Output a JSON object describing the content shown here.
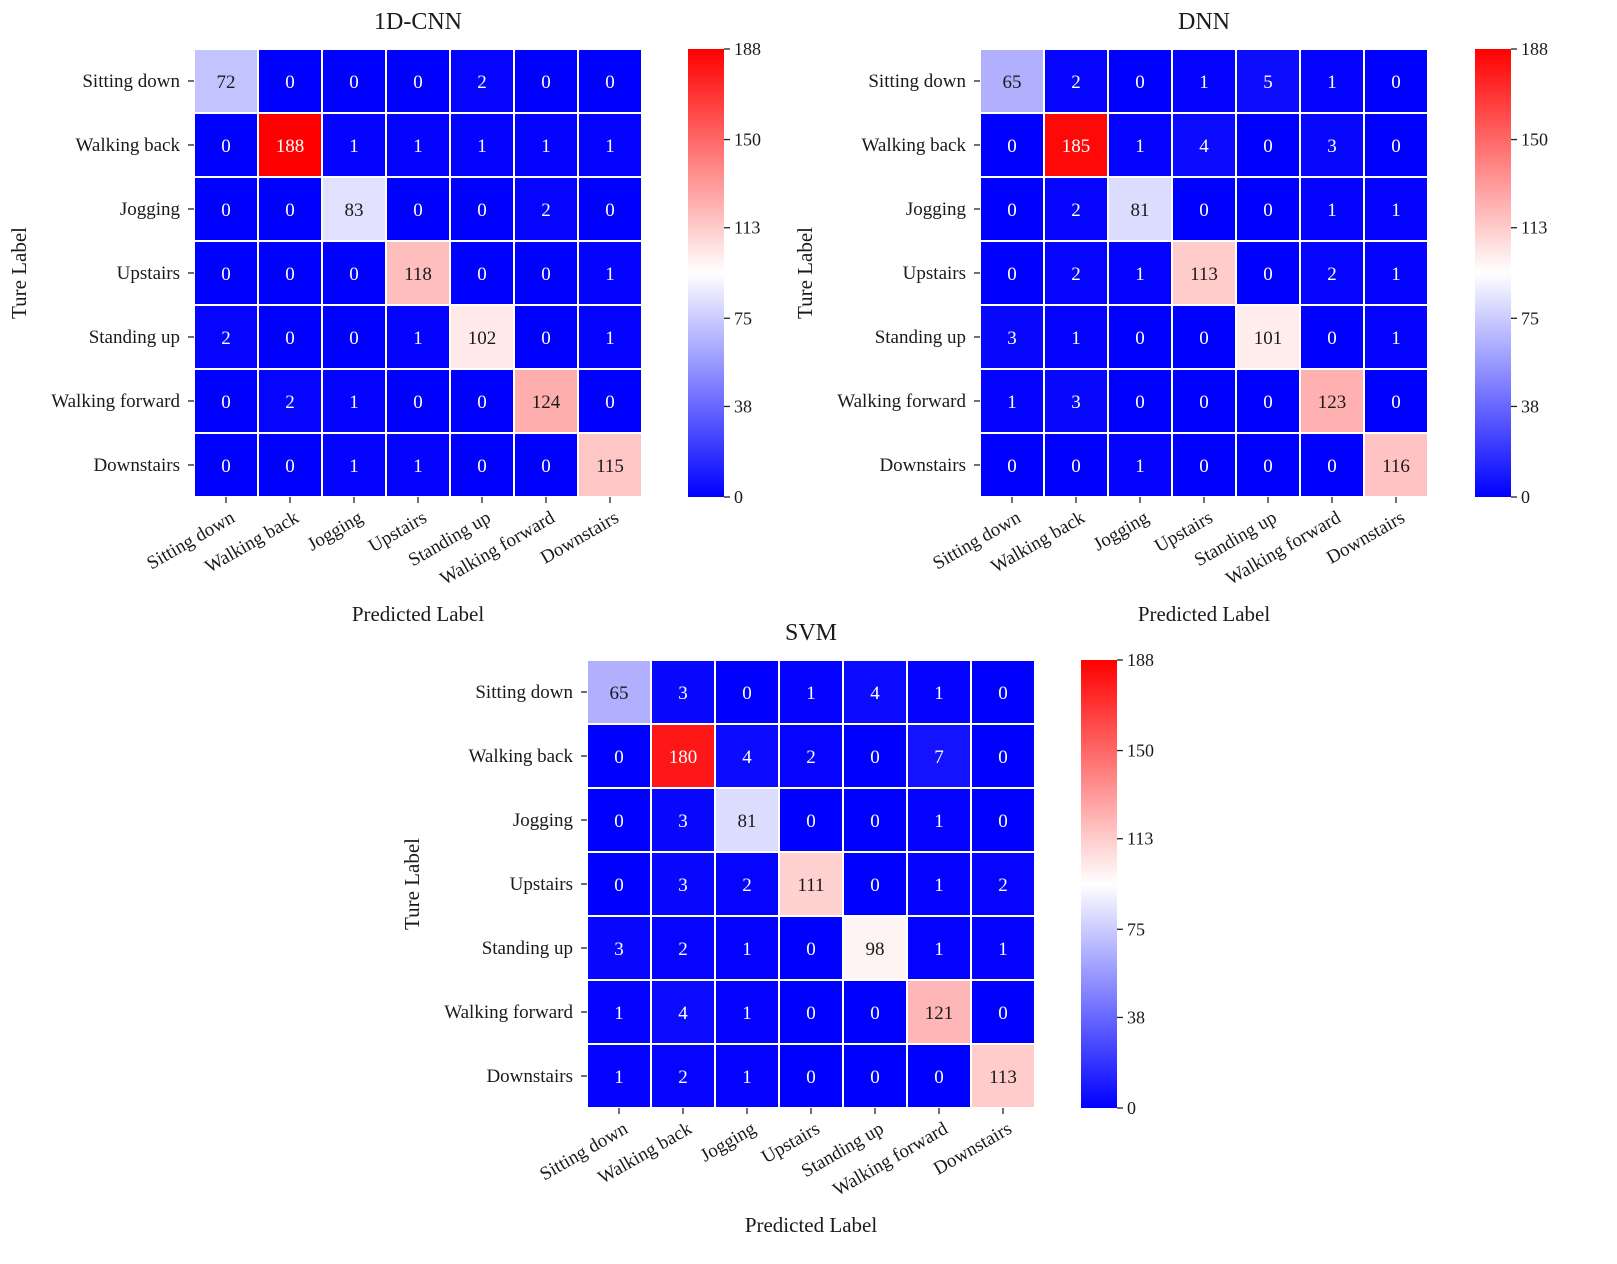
{
  "chart_data": [
    {
      "type": "heatmap",
      "title": "1D-CNN",
      "xlabel": "Predicted Label",
      "ylabel": "Ture Label",
      "categories": [
        "Sitting down",
        "Walking back",
        "Jogging",
        "Upstairs",
        "Standing up",
        "Walking forward",
        "Downstairs"
      ],
      "matrix": [
        [
          72,
          0,
          0,
          0,
          2,
          0,
          0
        ],
        [
          0,
          188,
          1,
          1,
          1,
          1,
          1
        ],
        [
          0,
          0,
          83,
          0,
          0,
          2,
          0
        ],
        [
          0,
          0,
          0,
          118,
          0,
          0,
          1
        ],
        [
          2,
          0,
          0,
          1,
          102,
          0,
          1
        ],
        [
          0,
          2,
          1,
          0,
          0,
          124,
          0
        ],
        [
          0,
          0,
          1,
          1,
          0,
          0,
          115
        ]
      ],
      "colorbar": {
        "min": 0,
        "max": 188,
        "ticks": [
          0,
          38,
          75,
          113,
          150,
          188
        ]
      }
    },
    {
      "type": "heatmap",
      "title": "DNN",
      "xlabel": "Predicted Label",
      "ylabel": "Ture Label",
      "categories": [
        "Sitting down",
        "Walking back",
        "Jogging",
        "Upstairs",
        "Standing up",
        "Walking forward",
        "Downstairs"
      ],
      "matrix": [
        [
          65,
          2,
          0,
          1,
          5,
          1,
          0
        ],
        [
          0,
          185,
          1,
          4,
          0,
          3,
          0
        ],
        [
          0,
          2,
          81,
          0,
          0,
          1,
          1
        ],
        [
          0,
          2,
          1,
          113,
          0,
          2,
          1
        ],
        [
          3,
          1,
          0,
          0,
          101,
          0,
          1
        ],
        [
          1,
          3,
          0,
          0,
          0,
          123,
          0
        ],
        [
          0,
          0,
          1,
          0,
          0,
          0,
          116
        ]
      ],
      "colorbar": {
        "min": 0,
        "max": 188,
        "ticks": [
          0,
          38,
          75,
          113,
          150,
          188
        ]
      }
    },
    {
      "type": "heatmap",
      "title": "SVM",
      "xlabel": "Predicted Label",
      "ylabel": "Ture Label",
      "categories": [
        "Sitting down",
        "Walking back",
        "Jogging",
        "Upstairs",
        "Standing up",
        "Walking forward",
        "Downstairs"
      ],
      "matrix": [
        [
          65,
          3,
          0,
          1,
          4,
          1,
          0
        ],
        [
          0,
          180,
          4,
          2,
          0,
          7,
          0
        ],
        [
          0,
          3,
          81,
          0,
          0,
          1,
          0
        ],
        [
          0,
          3,
          2,
          111,
          0,
          1,
          2
        ],
        [
          3,
          2,
          1,
          0,
          98,
          1,
          1
        ],
        [
          1,
          4,
          1,
          0,
          0,
          121,
          0
        ],
        [
          1,
          2,
          1,
          0,
          0,
          0,
          113
        ]
      ],
      "colorbar": {
        "min": 0,
        "max": 188,
        "ticks": [
          0,
          38,
          75,
          113,
          150,
          188
        ]
      }
    }
  ],
  "colors": {
    "low": "#0000ff",
    "mid": "#ffffff",
    "high": "#ff0000",
    "grid": "#ffffff",
    "text": "#1a1a1a",
    "text_on_dark": "#ffffff"
  }
}
